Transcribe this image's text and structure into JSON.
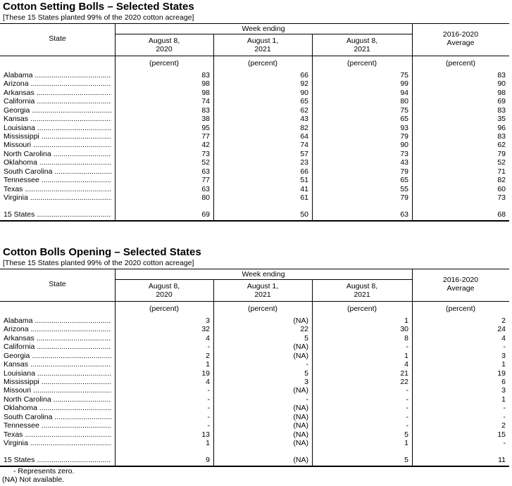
{
  "tables": [
    {
      "title": "Cotton Setting Bolls – Selected States",
      "subtitle": "[These 15 States planted 99% of the 2020 cotton acreage]",
      "header": {
        "state": "State",
        "week_ending": "Week ending",
        "cols": [
          [
            "August 8,",
            "2020"
          ],
          [
            "August 1,",
            "2021"
          ],
          [
            "August 8,",
            "2021"
          ],
          [
            "2016-2020",
            "Average"
          ]
        ],
        "unit": "(percent)"
      },
      "rows": [
        [
          "Alabama",
          "83",
          "66",
          "75",
          "83"
        ],
        [
          "Arizona",
          "98",
          "92",
          "99",
          "90"
        ],
        [
          "Arkansas",
          "98",
          "90",
          "94",
          "98"
        ],
        [
          "California",
          "74",
          "65",
          "80",
          "69"
        ],
        [
          "Georgia",
          "83",
          "62",
          "75",
          "83"
        ],
        [
          "Kansas",
          "38",
          "43",
          "65",
          "35"
        ],
        [
          "Louisiana",
          "95",
          "82",
          "93",
          "96"
        ],
        [
          "Mississippi",
          "77",
          "64",
          "79",
          "83"
        ],
        [
          "Missouri",
          "42",
          "74",
          "90",
          "62"
        ],
        [
          "North Carolina",
          "73",
          "57",
          "73",
          "79"
        ],
        [
          "Oklahoma",
          "52",
          "23",
          "43",
          "52"
        ],
        [
          "South Carolina",
          "63",
          "66",
          "79",
          "71"
        ],
        [
          "Tennessee",
          "77",
          "51",
          "65",
          "82"
        ],
        [
          "Texas",
          "63",
          "41",
          "55",
          "60"
        ],
        [
          "Virginia",
          "80",
          "61",
          "79",
          "73"
        ]
      ],
      "total": [
        "15 States",
        "69",
        "50",
        "63",
        "68"
      ]
    },
    {
      "title": "Cotton Bolls Opening – Selected States",
      "subtitle": "[These 15 States planted 99% of the 2020 cotton acreage]",
      "header": {
        "state": "State",
        "week_ending": "Week ending",
        "cols": [
          [
            "August 8,",
            "2020"
          ],
          [
            "August 1,",
            "2021"
          ],
          [
            "August 8,",
            "2021"
          ],
          [
            "2016-2020",
            "Average"
          ]
        ],
        "unit": "(percent)"
      },
      "rows": [
        [
          "Alabama",
          "3",
          "(NA)",
          "1",
          "2"
        ],
        [
          "Arizona",
          "32",
          "22",
          "30",
          "24"
        ],
        [
          "Arkansas",
          "4",
          "5",
          "8",
          "4"
        ],
        [
          "California",
          "-",
          "(NA)",
          "-",
          "-"
        ],
        [
          "Georgia",
          "2",
          "(NA)",
          "1",
          "3"
        ],
        [
          "Kansas",
          "1",
          "-",
          "4",
          "1"
        ],
        [
          "Louisiana",
          "19",
          "5",
          "21",
          "19"
        ],
        [
          "Mississippi",
          "4",
          "3",
          "22",
          "6"
        ],
        [
          "Missouri",
          "-",
          "(NA)",
          "-",
          "3"
        ],
        [
          "North Carolina",
          "-",
          "-",
          "-",
          "1"
        ],
        [
          "Oklahoma",
          "-",
          "(NA)",
          "-",
          "-"
        ],
        [
          "South Carolina",
          "-",
          "(NA)",
          "-",
          "-"
        ],
        [
          "Tennessee",
          "-",
          "(NA)",
          "-",
          "2"
        ],
        [
          "Texas",
          "13",
          "(NA)",
          "5",
          "15"
        ],
        [
          "Virginia",
          "1",
          "(NA)",
          "1",
          "-"
        ]
      ],
      "total": [
        "15 States",
        "9",
        "(NA)",
        "5",
        "11"
      ]
    }
  ],
  "footnotes": {
    "zero": "- Represents zero.",
    "na": "(NA) Not available."
  }
}
